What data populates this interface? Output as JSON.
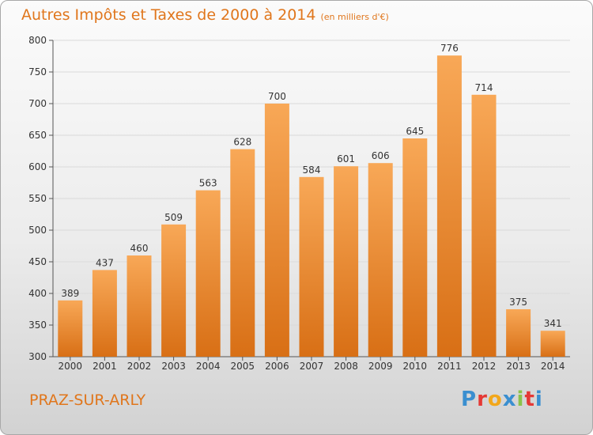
{
  "title": "Autres Impôts et Taxes de 2000 à 2014",
  "subtitle": "(en milliers d'€)",
  "commune": "PRAZ-SUR-ARLY",
  "logo": {
    "letters": [
      "P",
      "r",
      "o",
      "x",
      "i",
      "t",
      "i"
    ],
    "colors": [
      "#3a8fd0",
      "#e53935",
      "#f2a71b",
      "#3a8fd0",
      "#8bc34a",
      "#e53935",
      "#3a8fd0"
    ]
  },
  "colors": {
    "bar_light": "#f8a857",
    "bar_dark": "#d86f15",
    "text_orange": "#e0761c",
    "grid": "#dadada"
  },
  "chart_data": {
    "type": "bar",
    "categories": [
      "2000",
      "2001",
      "2002",
      "2003",
      "2004",
      "2005",
      "2006",
      "2007",
      "2008",
      "2009",
      "2010",
      "2011",
      "2012",
      "2013",
      "2014"
    ],
    "values": [
      389,
      437,
      460,
      509,
      563,
      628,
      700,
      584,
      601,
      606,
      645,
      776,
      714,
      375,
      341
    ],
    "title": "Autres Impôts et Taxes de 2000 à 2014",
    "subtitle": "(en milliers d'€)",
    "ylim": [
      300,
      800
    ],
    "yticks": [
      300,
      350,
      400,
      450,
      500,
      550,
      600,
      650,
      700,
      750,
      800
    ],
    "grid": true,
    "data_labels": true
  }
}
